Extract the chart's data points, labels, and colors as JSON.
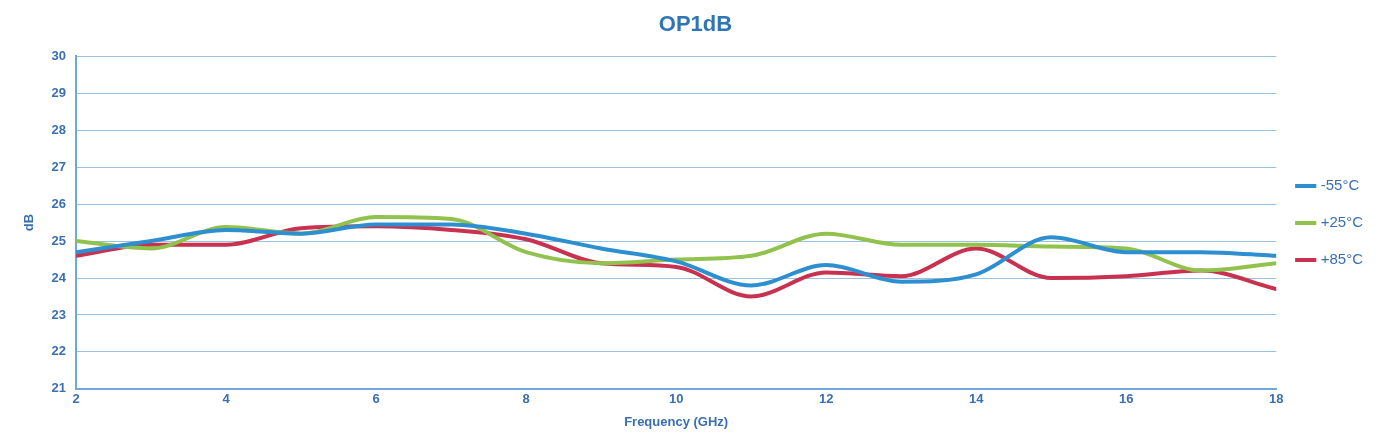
{
  "chart_data": {
    "type": "line",
    "title": "OP1dB",
    "xlabel": "Frequency (GHz)",
    "ylabel": "dB",
    "x": [
      2,
      3,
      4,
      5,
      6,
      7,
      8,
      9,
      10,
      11,
      12,
      13,
      14,
      15,
      16,
      17,
      18
    ],
    "xlim": [
      2,
      18
    ],
    "xticks": [
      2,
      4,
      6,
      8,
      10,
      12,
      14,
      16,
      18
    ],
    "ylim": [
      21,
      30
    ],
    "yticks": [
      21,
      22,
      23,
      24,
      25,
      26,
      27,
      28,
      29,
      30
    ],
    "grid": "y",
    "legend": "right",
    "marker": "none",
    "line_style": "solid",
    "series": [
      {
        "name": "-55°C",
        "color": "#2e8fd0",
        "values": [
          24.7,
          25.0,
          25.3,
          25.2,
          25.45,
          25.45,
          25.2,
          24.8,
          24.45,
          23.8,
          24.35,
          23.9,
          24.1,
          25.1,
          24.7,
          24.7,
          24.6
        ]
      },
      {
        "name": "+25°C",
        "color": "#92c24e",
        "values": [
          25.0,
          24.8,
          25.38,
          25.2,
          25.65,
          25.6,
          24.7,
          24.4,
          24.5,
          24.6,
          25.2,
          24.9,
          24.9,
          24.85,
          24.8,
          24.2,
          24.4
        ]
      },
      {
        "name": "+85°C",
        "color": "#c8314f",
        "values": [
          24.6,
          24.9,
          24.9,
          25.35,
          25.4,
          25.3,
          25.05,
          24.4,
          24.3,
          23.5,
          24.15,
          24.05,
          24.8,
          24.0,
          24.05,
          24.2,
          23.7
        ]
      }
    ]
  }
}
